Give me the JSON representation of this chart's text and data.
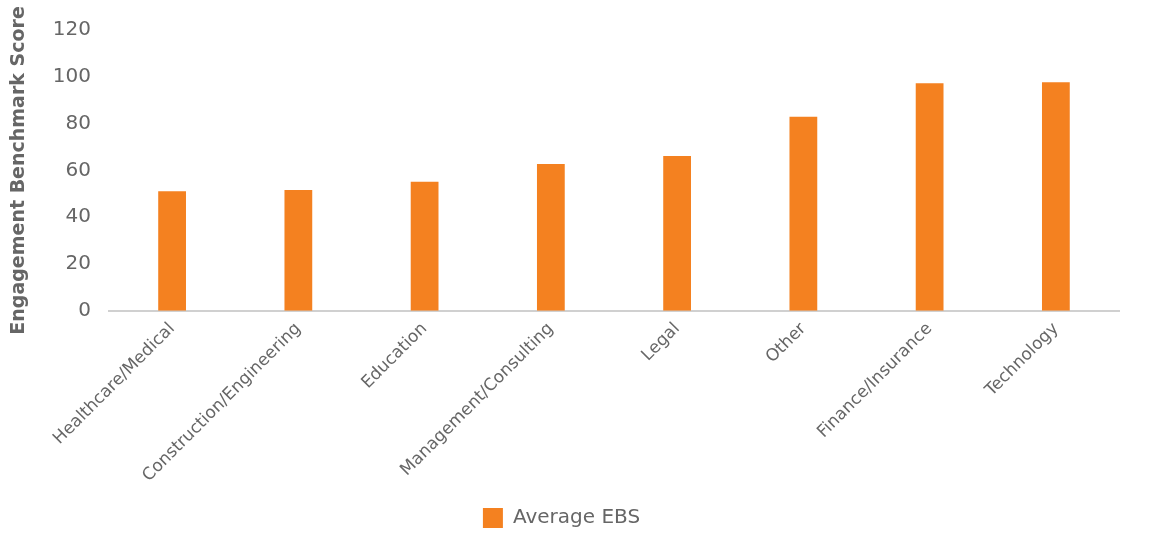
{
  "chart_data": {
    "type": "bar",
    "ylabel": "Engagement Benchmark Score",
    "categories": [
      "Healthcare/Medical",
      "Construction/Engineering",
      "Education",
      "Management/Consulting",
      "Legal",
      "Other",
      "Finance/Insurance",
      "Technology"
    ],
    "series": [
      {
        "name": "Average EBS",
        "color": "#f48120",
        "values": [
          51.1,
          51.6,
          55.2,
          62.7,
          66.2,
          82.9,
          97.2,
          97.7
        ]
      }
    ],
    "ylim": [
      0,
      120
    ],
    "yticks": [
      0,
      20,
      40,
      60,
      80,
      100,
      120
    ],
    "grid": false,
    "legend": "bottom"
  }
}
